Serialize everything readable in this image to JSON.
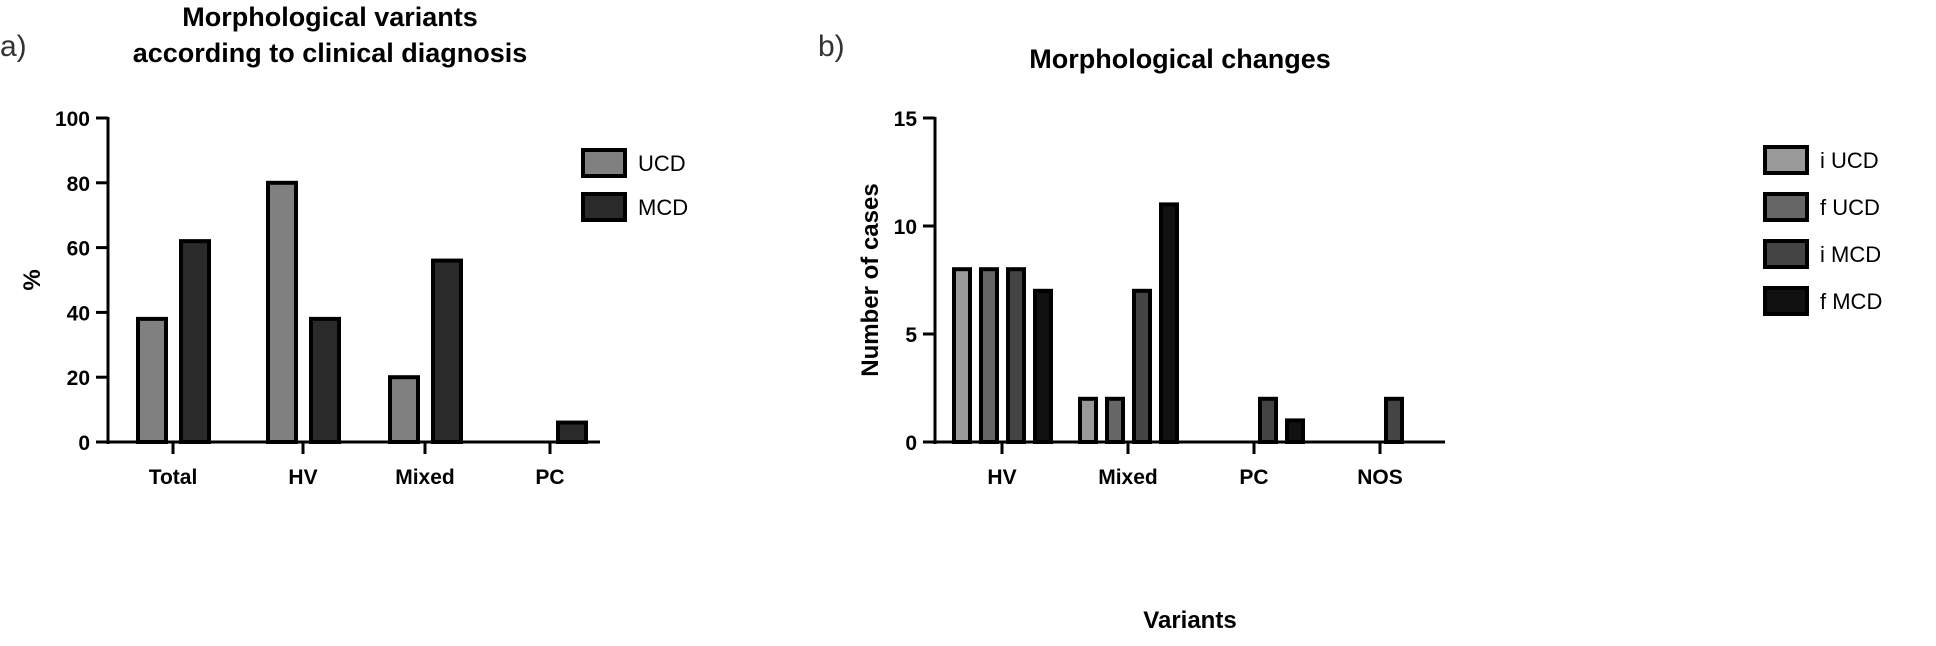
{
  "chart_data": [
    {
      "panel_label": "a)",
      "type": "bar",
      "title": [
        "Morphological variants",
        "according to clinical diagnosis"
      ],
      "xlabel": "",
      "ylabel": "%",
      "ylim": [
        0,
        100
      ],
      "yticks": [
        0,
        20,
        40,
        60,
        80,
        100
      ],
      "categories": [
        "Total",
        "HV",
        "Mixed",
        "PC"
      ],
      "series": [
        {
          "name": "UCD",
          "color": "#808080",
          "values": [
            38,
            80,
            20,
            0
          ]
        },
        {
          "name": "MCD",
          "color": "#2a2a2a",
          "values": [
            62,
            38,
            56,
            6
          ]
        }
      ],
      "legend": "top-right",
      "grid": false
    },
    {
      "panel_label": "b)",
      "type": "bar",
      "title": [
        "Morphological changes"
      ],
      "xlabel": "Variants",
      "ylabel": "Number of cases",
      "ylim": [
        0,
        15
      ],
      "yticks": [
        0,
        5,
        10,
        15
      ],
      "categories": [
        "HV",
        "Mixed",
        "PC",
        "NOS"
      ],
      "series": [
        {
          "name": "i UCD",
          "color": "#9a9a9a",
          "values": [
            8,
            2,
            0,
            0
          ]
        },
        {
          "name": "f UCD",
          "color": "#666666",
          "values": [
            8,
            2,
            0,
            0
          ]
        },
        {
          "name": "i MCD",
          "color": "#444444",
          "values": [
            8,
            7,
            2,
            2
          ]
        },
        {
          "name": "f MCD",
          "color": "#111111",
          "values": [
            7,
            11,
            1,
            0
          ]
        }
      ],
      "legend": "top-right",
      "grid": false
    }
  ]
}
